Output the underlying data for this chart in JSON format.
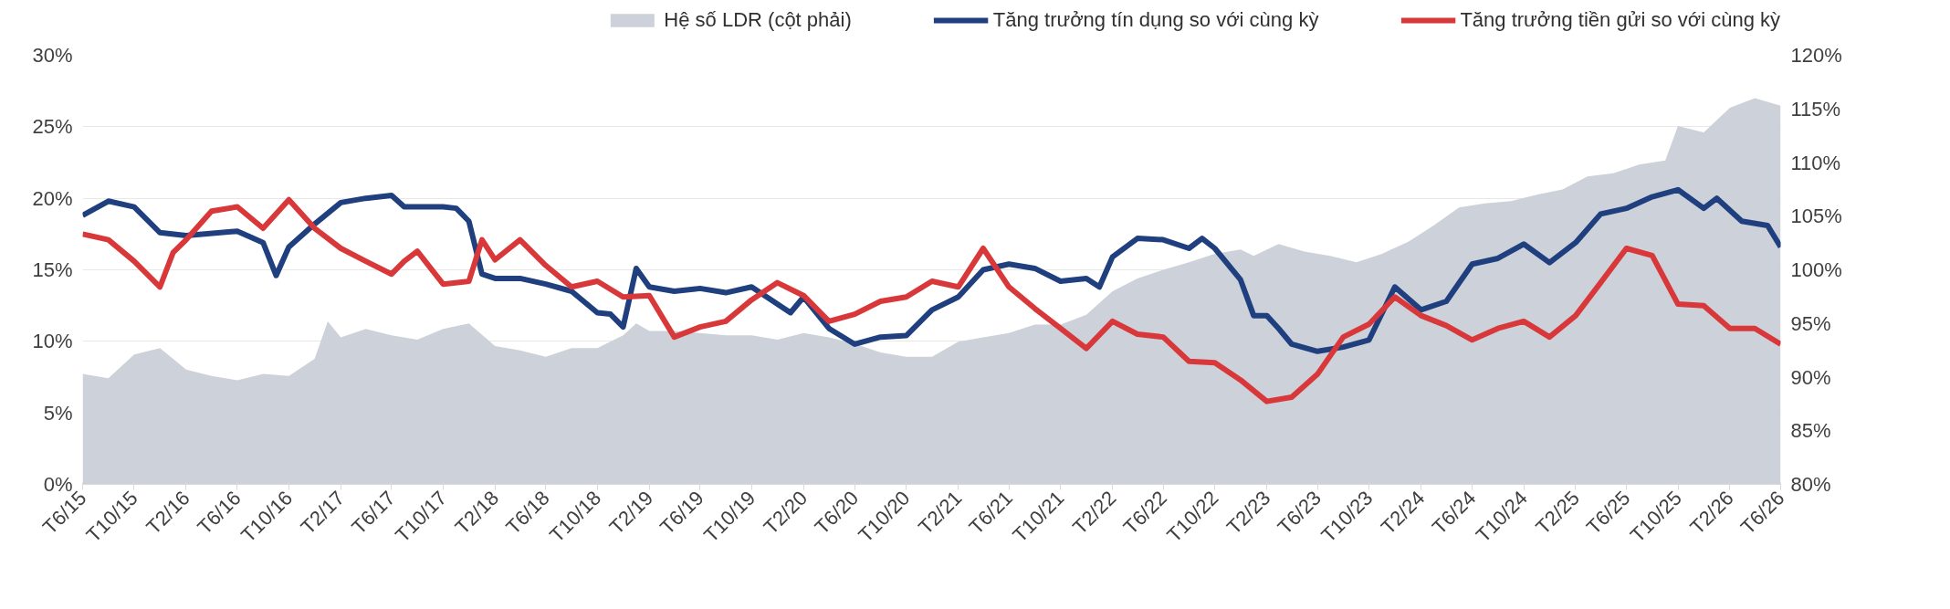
{
  "chart_data": {
    "type": "line",
    "legend": "top",
    "grid": "y",
    "xlim": [
      "2015-06",
      "2026-06"
    ],
    "xticks": [
      {
        "value": "2015-06",
        "label": "T6/15"
      },
      {
        "value": "2015-10",
        "label": "T10/15"
      },
      {
        "value": "2016-02",
        "label": "T2/16"
      },
      {
        "value": "2016-06",
        "label": "T6/16"
      },
      {
        "value": "2016-10",
        "label": "T10/16"
      },
      {
        "value": "2017-02",
        "label": "T2/17"
      },
      {
        "value": "2017-06",
        "label": "T6/17"
      },
      {
        "value": "2017-10",
        "label": "T10/17"
      },
      {
        "value": "2018-02",
        "label": "T2/18"
      },
      {
        "value": "2018-06",
        "label": "T6/18"
      },
      {
        "value": "2018-10",
        "label": "T10/18"
      },
      {
        "value": "2019-02",
        "label": "T2/19"
      },
      {
        "value": "2019-06",
        "label": "T6/19"
      },
      {
        "value": "2019-10",
        "label": "T10/19"
      },
      {
        "value": "2020-02",
        "label": "T2/20"
      },
      {
        "value": "2020-06",
        "label": "T6/20"
      },
      {
        "value": "2020-10",
        "label": "T10/20"
      },
      {
        "value": "2021-02",
        "label": "T2/21"
      },
      {
        "value": "2021-06",
        "label": "T6/21"
      },
      {
        "value": "2021-10",
        "label": "T10/21"
      },
      {
        "value": "2022-02",
        "label": "T2/22"
      },
      {
        "value": "2022-06",
        "label": "T6/22"
      },
      {
        "value": "2022-10",
        "label": "T10/22"
      },
      {
        "value": "2023-02",
        "label": "T2/23"
      },
      {
        "value": "2023-06",
        "label": "T6/23"
      },
      {
        "value": "2023-10",
        "label": "T10/23"
      },
      {
        "value": "2024-02",
        "label": "T2/24"
      },
      {
        "value": "2024-06",
        "label": "T6/24"
      },
      {
        "value": "2024-10",
        "label": "T10/24"
      },
      {
        "value": "2025-02",
        "label": "T2/25"
      },
      {
        "value": "2025-06",
        "label": "T6/25"
      },
      {
        "value": "2025-10",
        "label": "T10/25"
      },
      {
        "value": "2026-02",
        "label": "T2/26"
      },
      {
        "value": "2026-06",
        "label": "T6/26"
      }
    ],
    "ylim": [
      0,
      30
    ],
    "yticks": [
      {
        "value": 0,
        "label": "0%"
      },
      {
        "value": 5,
        "label": "5%"
      },
      {
        "value": 10,
        "label": "10%"
      },
      {
        "value": 15,
        "label": "15%"
      },
      {
        "value": 20,
        "label": "20%"
      },
      {
        "value": 25,
        "label": "25%"
      },
      {
        "value": 30,
        "label": "30%"
      }
    ],
    "y2lim": [
      80,
      120
    ],
    "y2ticks": [
      {
        "value": 80,
        "label": "80%"
      },
      {
        "value": 85,
        "label": "85%"
      },
      {
        "value": 90,
        "label": "90%"
      },
      {
        "value": 95,
        "label": "95%"
      },
      {
        "value": 100,
        "label": "100%"
      },
      {
        "value": 105,
        "label": "105%"
      },
      {
        "value": 110,
        "label": "110%"
      },
      {
        "value": 115,
        "label": "115%"
      },
      {
        "value": 120,
        "label": "120%"
      }
    ],
    "series": [
      {
        "name": "Hệ số LDR (cột phải)",
        "type": "area",
        "axis": "y2",
        "color": "#cdd1d9",
        "x": [
          "2015-06",
          "2015-08",
          "2015-10",
          "2015-12",
          "2016-02",
          "2016-04",
          "2016-06",
          "2016-08",
          "2016-10",
          "2016-12",
          "2017-01",
          "2017-02",
          "2017-04",
          "2017-06",
          "2017-08",
          "2017-10",
          "2017-12",
          "2018-02",
          "2018-04",
          "2018-06",
          "2018-08",
          "2018-10",
          "2018-12",
          "2019-01",
          "2019-02",
          "2019-04",
          "2019-06",
          "2019-08",
          "2019-10",
          "2019-12",
          "2020-02",
          "2020-04",
          "2020-06",
          "2020-08",
          "2020-10",
          "2020-12",
          "2021-02",
          "2021-04",
          "2021-06",
          "2021-08",
          "2021-10",
          "2021-12",
          "2022-02",
          "2022-04",
          "2022-06",
          "2022-08",
          "2022-10",
          "2022-12",
          "2023-01",
          "2023-03",
          "2023-05",
          "2023-07",
          "2023-09",
          "2023-11",
          "2024-01",
          "2024-03",
          "2024-05",
          "2024-07",
          "2024-09",
          "2024-11",
          "2025-01",
          "2025-03",
          "2025-05",
          "2025-07",
          "2025-09",
          "2025-10",
          "2025-12",
          "2026-02",
          "2026-04",
          "2026-06"
        ],
        "values": [
          90.3,
          89.9,
          92.1,
          92.7,
          90.7,
          90.1,
          89.7,
          90.3,
          90.1,
          91.7,
          95.2,
          93.7,
          94.5,
          93.9,
          93.5,
          94.5,
          95.0,
          92.9,
          92.5,
          91.9,
          92.7,
          92.7,
          93.9,
          95.0,
          94.3,
          94.3,
          94.1,
          93.9,
          93.9,
          93.5,
          94.1,
          93.7,
          93.1,
          92.3,
          91.9,
          91.9,
          93.3,
          93.7,
          94.1,
          94.9,
          94.9,
          95.8,
          98.0,
          99.2,
          100.0,
          100.7,
          101.5,
          101.9,
          101.3,
          102.4,
          101.7,
          101.3,
          100.7,
          101.5,
          102.6,
          104.1,
          105.8,
          106.2,
          106.4,
          107.0,
          107.5,
          108.7,
          109.0,
          109.8,
          110.2,
          113.4,
          112.8,
          115.1,
          116.0,
          115.3
        ]
      },
      {
        "name": "Tăng trưởng tín dụng so với cùng kỳ",
        "color": "#1f3f7f",
        "x": [
          "2015-06",
          "2015-08",
          "2015-10",
          "2015-12",
          "2016-02",
          "2016-06",
          "2016-08",
          "2016-09",
          "2016-10",
          "2016-12",
          "2017-02",
          "2017-04",
          "2017-06",
          "2017-07",
          "2017-10",
          "2017-11",
          "2017-12",
          "2018-01",
          "2018-02",
          "2018-04",
          "2018-06",
          "2018-08",
          "2018-10",
          "2018-11",
          "2018-12",
          "2019-01",
          "2019-02",
          "2019-04",
          "2019-06",
          "2019-08",
          "2019-10",
          "2020-01",
          "2020-02",
          "2020-04",
          "2020-06",
          "2020-08",
          "2020-10",
          "2020-12",
          "2021-02",
          "2021-04",
          "2021-06",
          "2021-08",
          "2021-10",
          "2021-12",
          "2022-01",
          "2022-02",
          "2022-04",
          "2022-06",
          "2022-08",
          "2022-09",
          "2022-10",
          "2022-12",
          "2023-01",
          "2023-02",
          "2023-03",
          "2023-04",
          "2023-06",
          "2023-08",
          "2023-10",
          "2023-12",
          "2024-02",
          "2024-04",
          "2024-06",
          "2024-08",
          "2024-10",
          "2024-12",
          "2025-02",
          "2025-04",
          "2025-06",
          "2025-08",
          "2025-10",
          "2025-12",
          "2026-01",
          "2026-03",
          "2026-05",
          "2026-06"
        ],
        "values": [
          18.8,
          19.8,
          19.4,
          17.6,
          17.4,
          17.7,
          16.9,
          14.6,
          16.6,
          18.2,
          19.7,
          20.0,
          20.2,
          19.4,
          19.4,
          19.3,
          18.4,
          14.7,
          14.4,
          14.4,
          14.0,
          13.5,
          12.0,
          11.9,
          11.0,
          15.1,
          13.8,
          13.5,
          13.7,
          13.4,
          13.8,
          12.0,
          13.1,
          10.9,
          9.8,
          10.3,
          10.4,
          12.2,
          13.1,
          15.0,
          15.4,
          15.1,
          14.2,
          14.4,
          13.8,
          15.9,
          17.2,
          17.1,
          16.5,
          17.2,
          16.5,
          14.3,
          11.8,
          11.8,
          10.9,
          9.8,
          9.3,
          9.6,
          10.1,
          13.8,
          12.2,
          12.8,
          15.4,
          15.8,
          16.8,
          15.5,
          16.9,
          18.9,
          19.3,
          20.1,
          20.6,
          19.3,
          20.0,
          18.4,
          18.1,
          16.6
        ]
      },
      {
        "name": "Tăng trưởng tiền gửi so với cùng kỳ",
        "color": "#d9383a",
        "x": [
          "2015-06",
          "2015-08",
          "2015-10",
          "2015-12",
          "2016-01",
          "2016-02",
          "2016-04",
          "2016-06",
          "2016-08",
          "2016-10",
          "2016-12",
          "2017-02",
          "2017-04",
          "2017-06",
          "2017-07",
          "2017-08",
          "2017-10",
          "2017-12",
          "2018-01",
          "2018-02",
          "2018-04",
          "2018-06",
          "2018-08",
          "2018-10",
          "2018-12",
          "2019-02",
          "2019-04",
          "2019-06",
          "2019-08",
          "2019-10",
          "2019-12",
          "2020-02",
          "2020-04",
          "2020-06",
          "2020-08",
          "2020-10",
          "2020-12",
          "2021-02",
          "2021-04",
          "2021-06",
          "2021-08",
          "2021-10",
          "2021-12",
          "2022-02",
          "2022-04",
          "2022-06",
          "2022-08",
          "2022-10",
          "2022-12",
          "2023-02",
          "2023-04",
          "2023-06",
          "2023-08",
          "2023-10",
          "2023-12",
          "2024-02",
          "2024-04",
          "2024-06",
          "2024-08",
          "2024-10",
          "2024-12",
          "2025-02",
          "2025-04",
          "2025-06",
          "2025-08",
          "2025-10",
          "2025-12",
          "2026-02",
          "2026-04",
          "2026-06"
        ],
        "values": [
          17.5,
          17.1,
          15.6,
          13.8,
          16.2,
          17.1,
          19.1,
          19.4,
          17.9,
          19.9,
          17.9,
          16.5,
          15.6,
          14.7,
          15.6,
          16.3,
          14.0,
          14.2,
          17.1,
          15.7,
          17.1,
          15.3,
          13.8,
          14.2,
          13.1,
          13.2,
          10.3,
          11.0,
          11.4,
          12.9,
          14.1,
          13.2,
          11.4,
          11.9,
          12.8,
          13.1,
          14.2,
          13.8,
          16.5,
          13.8,
          12.3,
          10.9,
          9.5,
          11.4,
          10.5,
          10.3,
          8.6,
          8.5,
          7.3,
          5.8,
          6.1,
          7.7,
          10.3,
          11.2,
          13.1,
          11.8,
          11.1,
          10.1,
          10.9,
          11.4,
          10.3,
          11.8,
          14.1,
          16.5,
          16.0,
          12.6,
          12.5,
          10.9,
          10.9,
          9.8
        ]
      }
    ]
  }
}
